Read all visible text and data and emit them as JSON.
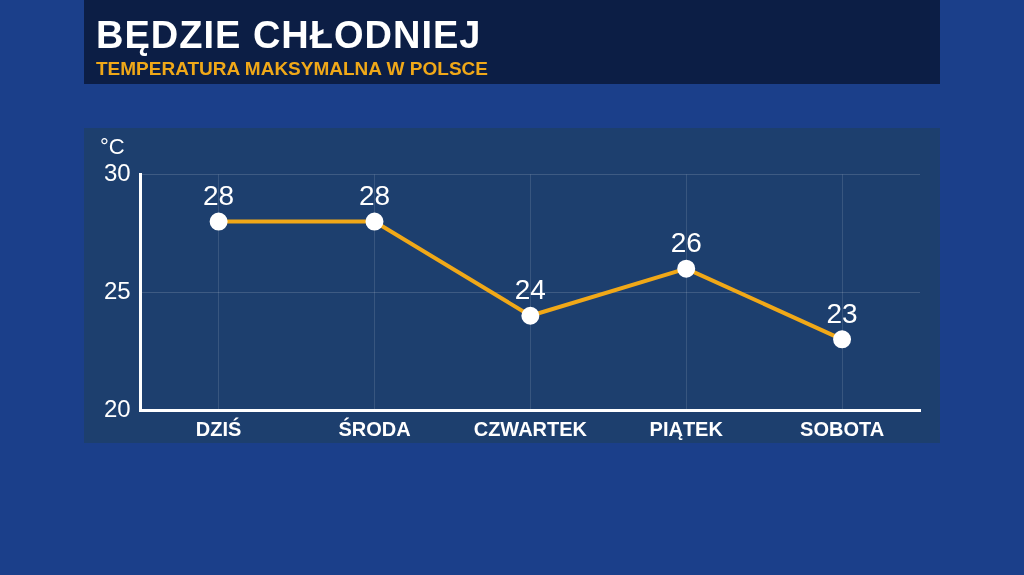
{
  "chart_data": {
    "type": "line",
    "title": "BĘDZIE CHŁODNIEJ",
    "subtitle": "TEMPERATURA MAKSYMALNA W POLSCE",
    "ylabel": "°C",
    "categories": [
      "DZIŚ",
      "ŚRODA",
      "CZWARTEK",
      "PIĄTEK",
      "SOBOTA"
    ],
    "series": [
      {
        "color": "#f0a818",
        "values": [
          28,
          28,
          24,
          26,
          23
        ]
      }
    ],
    "ylim": [
      20,
      30
    ],
    "yticks": [
      20,
      25,
      30
    ],
    "grid": true,
    "legend": false,
    "marker": "circle",
    "data_labels": true
  }
}
